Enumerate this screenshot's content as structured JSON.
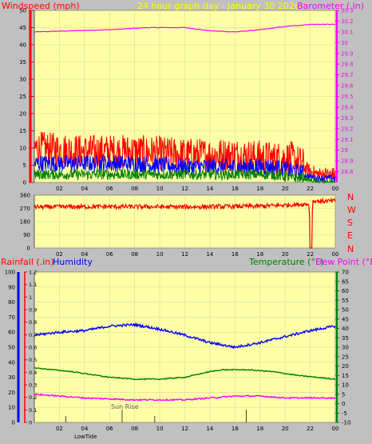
{
  "header": {
    "windspeed_label": "Windspeed (mph)",
    "title": "24 hour graph day - January 30 2026",
    "barometer_label": "Barometer (.in)"
  },
  "middle": {
    "compass": [
      "N",
      "W",
      "S",
      "E",
      "N"
    ]
  },
  "bottom": {
    "rainfall_label": "Rainfall (.in)",
    "humidity_label": "Humidity",
    "temperature_label": "Temperature (°F)",
    "dewpoint_label": "Dew Point (°F)",
    "sunrise_label": "Sun Rise",
    "lowtide_label": "LowTide"
  },
  "colors": {
    "background": "#c0c0c0",
    "plot": "#ffffa8",
    "grid": "#d8d8a0",
    "windspeed": "#ff0000",
    "gust_avg": "#0000ff",
    "wind_low": "#008000",
    "barometer": "#ff00ff",
    "direction": "#ff0000",
    "humidity": "#0000ff",
    "temperature": "#008000",
    "dewpoint": "#ff00ff",
    "rain_axis": "#ff0000",
    "humidity_axis": "#0000ff",
    "temp_axis": "#008000"
  },
  "chart_data": [
    {
      "type": "line",
      "name": "wind-barometer",
      "x_ticks": [
        "02",
        "04",
        "06",
        "08",
        "10",
        "12",
        "14",
        "16",
        "18",
        "20",
        "22",
        "00"
      ],
      "left_axis": {
        "label": "Windspeed (mph)",
        "ylim": [
          0,
          50
        ],
        "ticks": [
          0,
          5,
          10,
          15,
          20,
          25,
          30,
          35,
          40,
          45,
          50
        ]
      },
      "right_axis": {
        "label": "Barometer (.in)",
        "ylim": [
          28.7,
          30.3
        ],
        "ticks": [
          "28.8",
          "28.9",
          "29",
          "29.1",
          "29.2",
          "29.3",
          "29.4",
          "29.5",
          "29.6",
          "29.7",
          "29.8",
          "29.9",
          "30",
          "30.1",
          "30.2",
          "30.3"
        ]
      },
      "series": [
        {
          "axis": "right",
          "hours": [
            0,
            3,
            6,
            9,
            12,
            14,
            16,
            18,
            20,
            22,
            24
          ],
          "values": [
            30.1,
            30.11,
            30.12,
            30.14,
            30.14,
            30.11,
            30.1,
            30.12,
            30.15,
            30.17,
            30.17
          ]
        },
        {
          "axis": "left",
          "hours": [
            0,
            4,
            8,
            12,
            16,
            19,
            20.5,
            21.5,
            22.5,
            24
          ],
          "values": [
            9,
            8,
            8,
            7,
            7,
            6,
            6,
            4,
            2,
            2
          ]
        },
        {
          "axis": "left",
          "hours": [
            0,
            4,
            8,
            12,
            16,
            19,
            20.5,
            21.5,
            22.5,
            24
          ],
          "values": [
            5,
            5,
            5,
            4,
            4,
            4,
            3,
            2,
            1,
            1
          ]
        },
        {
          "axis": "left",
          "hours": [
            0,
            4,
            8,
            12,
            16,
            19,
            20.5,
            21.5,
            22.5,
            24
          ],
          "values": [
            2,
            2,
            2,
            2,
            2,
            2,
            1,
            1,
            0,
            0
          ]
        }
      ]
    },
    {
      "type": "line",
      "name": "wind-direction",
      "x_ticks": [
        "02",
        "04",
        "06",
        "08",
        "10",
        "12",
        "14",
        "16",
        "18",
        "20",
        "22",
        "00"
      ],
      "left_axis": {
        "ylim": [
          0,
          360
        ],
        "ticks": [
          0,
          90,
          180,
          270,
          360
        ]
      },
      "series": [
        {
          "hours": [
            0,
            6,
            12,
            18,
            21.9,
            22.05,
            22.2,
            24
          ],
          "values": [
            280,
            282,
            280,
            285,
            300,
            0,
            320,
            320
          ]
        }
      ]
    },
    {
      "type": "line",
      "name": "rain-humidity-temperature",
      "x_ticks": [
        "02",
        "04",
        "06",
        "08",
        "10",
        "12",
        "14",
        "16",
        "18",
        "20",
        "22",
        "00"
      ],
      "rain_axis": {
        "label": "Rainfall (.in)",
        "ylim": [
          0,
          1.2
        ],
        "ticks": [
          "0",
          "0.1",
          "0.2",
          "0.3",
          "0.4",
          "0.5",
          "0.6",
          "0.7",
          "0.8",
          "0.9",
          "1",
          "1.1",
          "1.2"
        ]
      },
      "humidity_axis": {
        "label": "Humidity",
        "ylim": [
          0,
          100
        ],
        "ticks": [
          0,
          10,
          20,
          30,
          40,
          50,
          60,
          70,
          80,
          90,
          100
        ]
      },
      "temp_axis": {
        "label": "Temperature (°F)",
        "ylim": [
          -10,
          70
        ],
        "ticks": [
          -10,
          -5,
          0,
          5,
          10,
          15,
          20,
          25,
          30,
          35,
          40,
          45,
          50,
          55,
          60,
          65,
          70
        ]
      },
      "series": [
        {
          "axis": "humidity",
          "hours": [
            0,
            2,
            4,
            6,
            8,
            10,
            12,
            14,
            16,
            18,
            20,
            22,
            24
          ],
          "values": [
            58,
            60,
            61,
            64,
            65,
            62,
            58,
            53,
            50,
            53,
            57,
            61,
            64
          ]
        },
        {
          "axis": "temp",
          "hours": [
            0,
            3,
            6,
            8,
            10,
            12,
            14,
            15,
            17,
            19,
            21,
            24
          ],
          "values": [
            19,
            17,
            14,
            13,
            13,
            14,
            17,
            18,
            18,
            17,
            15,
            13
          ]
        },
        {
          "axis": "temp",
          "hours": [
            0,
            4,
            8,
            12,
            14,
            16,
            18,
            20,
            22,
            24
          ],
          "values": [
            5,
            3,
            2,
            2,
            3,
            4,
            4,
            3,
            3,
            3
          ]
        }
      ],
      "markers": [
        {
          "hour": 2.5,
          "label": "LowTide"
        },
        {
          "hour": 7.0,
          "label": "Sun Rise"
        },
        {
          "hour": 9.6,
          "label": ""
        },
        {
          "hour": 16.9,
          "label": ""
        }
      ]
    }
  ]
}
